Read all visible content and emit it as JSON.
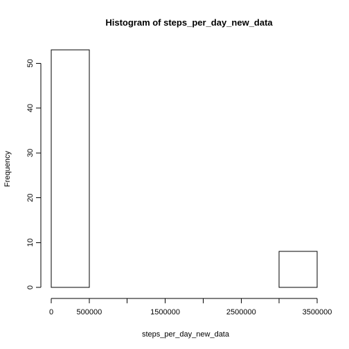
{
  "chart_data": {
    "type": "bar",
    "title": "Histogram of steps_per_day_new_data",
    "xlabel": "steps_per_day_new_data",
    "ylabel": "Frequency",
    "bins": [
      {
        "start": 0,
        "end": 500000,
        "count": 53
      },
      {
        "start": 500000,
        "end": 1000000,
        "count": 0
      },
      {
        "start": 1000000,
        "end": 1500000,
        "count": 0
      },
      {
        "start": 1500000,
        "end": 2000000,
        "count": 0
      },
      {
        "start": 2000000,
        "end": 2500000,
        "count": 0
      },
      {
        "start": 2500000,
        "end": 3000000,
        "count": 0
      },
      {
        "start": 3000000,
        "end": 3500000,
        "count": 8
      }
    ],
    "xlim": [
      0,
      3500000
    ],
    "ylim": [
      0,
      53
    ],
    "x_ticks": [
      0,
      500000,
      1000000,
      1500000,
      2000000,
      2500000,
      3000000,
      3500000
    ],
    "x_tick_labels": [
      "0",
      "500000",
      "",
      "1500000",
      "",
      "2500000",
      "",
      "3500000"
    ],
    "y_ticks": [
      0,
      10,
      20,
      30,
      40,
      50
    ],
    "y_tick_labels": [
      "0",
      "10",
      "20",
      "30",
      "40",
      "50"
    ],
    "bar_fill": "#ffffff",
    "bar_stroke": "#000000",
    "grid": false,
    "legend": "none"
  }
}
